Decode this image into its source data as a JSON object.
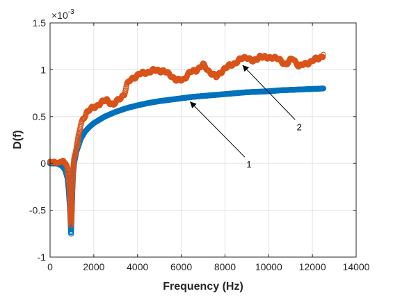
{
  "chart_data": {
    "type": "scatter",
    "title": "",
    "xlabel": "Frequency (Hz)",
    "ylabel": "D(f)",
    "ylim": [
      -1,
      1.5
    ],
    "xlim": [
      0,
      14000
    ],
    "y_exponent_label": "×10",
    "y_exponent_power": "-3",
    "grid": true,
    "x_ticks": [
      "0",
      "2000",
      "4000",
      "6000",
      "8000",
      "10000",
      "12000",
      "14000"
    ],
    "y_ticks": [
      "-1",
      "-0.5",
      "0",
      "0.5",
      "1",
      "1.5"
    ],
    "annotations": [
      {
        "text": "1",
        "points_to": {
          "x": 6400,
          "y": 0.66
        },
        "label_at": {
          "x": 9100,
          "y": 0.0
        }
      },
      {
        "text": "2",
        "points_to": {
          "x": 8800,
          "y": 1.05
        },
        "label_at": {
          "x": 11400,
          "y": 0.4
        }
      }
    ],
    "series": [
      {
        "name": "1",
        "color": "#0072BD",
        "points": [
          [
            0,
            0.0
          ],
          [
            100,
            0.0
          ],
          [
            200,
            0.0
          ],
          [
            300,
            0.0
          ],
          [
            400,
            -0.01
          ],
          [
            500,
            -0.02
          ],
          [
            600,
            -0.04
          ],
          [
            700,
            -0.08
          ],
          [
            800,
            -0.16
          ],
          [
            850,
            -0.28
          ],
          [
            900,
            -0.45
          ],
          [
            930,
            -0.58
          ],
          [
            960,
            -0.75
          ],
          [
            990,
            -0.55
          ],
          [
            1020,
            -0.3
          ],
          [
            1060,
            -0.1
          ],
          [
            1100,
            0.0
          ],
          [
            1200,
            0.12
          ],
          [
            1400,
            0.26
          ],
          [
            1600,
            0.34
          ],
          [
            1800,
            0.39
          ],
          [
            2000,
            0.43
          ],
          [
            2500,
            0.5
          ],
          [
            3000,
            0.55
          ],
          [
            3500,
            0.59
          ],
          [
            4000,
            0.62
          ],
          [
            4500,
            0.645
          ],
          [
            5000,
            0.665
          ],
          [
            5500,
            0.68
          ],
          [
            6000,
            0.695
          ],
          [
            6500,
            0.71
          ],
          [
            7000,
            0.72
          ],
          [
            7500,
            0.73
          ],
          [
            8000,
            0.74
          ],
          [
            8500,
            0.75
          ],
          [
            9000,
            0.76
          ],
          [
            9500,
            0.765
          ],
          [
            10000,
            0.77
          ],
          [
            10500,
            0.78
          ],
          [
            11000,
            0.785
          ],
          [
            11500,
            0.79
          ],
          [
            12000,
            0.795
          ],
          [
            12500,
            0.8
          ]
        ]
      },
      {
        "name": "2",
        "color": "#D95319",
        "points": [
          [
            0,
            0.02
          ],
          [
            100,
            0.01
          ],
          [
            200,
            0.02
          ],
          [
            300,
            0.0
          ],
          [
            400,
            0.01
          ],
          [
            500,
            0.02
          ],
          [
            600,
            0.03
          ],
          [
            650,
            0.01
          ],
          [
            700,
            0.0
          ],
          [
            750,
            -0.02
          ],
          [
            800,
            -0.05
          ],
          [
            850,
            -0.15
          ],
          [
            900,
            -0.3
          ],
          [
            930,
            -0.48
          ],
          [
            960,
            -0.66
          ],
          [
            990,
            -0.5
          ],
          [
            1020,
            -0.25
          ],
          [
            1060,
            -0.05
          ],
          [
            1100,
            0.05
          ],
          [
            1200,
            0.15
          ],
          [
            1300,
            0.3
          ],
          [
            1400,
            0.4
          ],
          [
            1500,
            0.48
          ],
          [
            1700,
            0.55
          ],
          [
            2000,
            0.6
          ],
          [
            2300,
            0.64
          ],
          [
            2600,
            0.68
          ],
          [
            2900,
            0.62
          ],
          [
            3200,
            0.7
          ],
          [
            3400,
            0.74
          ],
          [
            3500,
            0.83
          ],
          [
            3700,
            0.9
          ],
          [
            4000,
            0.94
          ],
          [
            4300,
            0.97
          ],
          [
            4600,
            0.98
          ],
          [
            4900,
            1.0
          ],
          [
            5200,
            0.98
          ],
          [
            5500,
            0.95
          ],
          [
            5800,
            0.88
          ],
          [
            6100,
            0.9
          ],
          [
            6400,
            0.97
          ],
          [
            6700,
            1.0
          ],
          [
            7000,
            1.05
          ],
          [
            7300,
            0.98
          ],
          [
            7600,
            0.92
          ],
          [
            7900,
            1.0
          ],
          [
            8200,
            1.04
          ],
          [
            8500,
            1.08
          ],
          [
            8800,
            1.12
          ],
          [
            9000,
            1.14
          ],
          [
            9300,
            1.08
          ],
          [
            9600,
            1.15
          ],
          [
            9900,
            1.12
          ],
          [
            10200,
            1.14
          ],
          [
            10500,
            1.1
          ],
          [
            10800,
            1.06
          ],
          [
            11100,
            1.12
          ],
          [
            11400,
            1.04
          ],
          [
            11700,
            1.06
          ],
          [
            12000,
            1.1
          ],
          [
            12300,
            1.12
          ],
          [
            12500,
            1.16
          ]
        ]
      }
    ]
  }
}
